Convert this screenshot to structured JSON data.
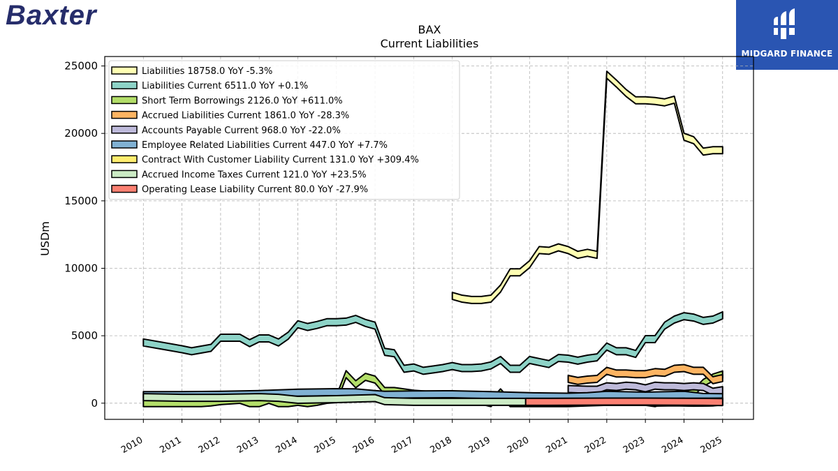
{
  "brand": {
    "logo_text": "Baxter",
    "partner_name": "MIDGARD FINANCE"
  },
  "chart_data": {
    "type": "area",
    "title": "BAX",
    "subtitle": "Current  Liabilities",
    "ylabel": "USDm",
    "xlabel": "",
    "ylim": [
      -1200,
      25700
    ],
    "xlim": [
      2009.0,
      2025.8
    ],
    "yticks": [
      0,
      5000,
      10000,
      15000,
      20000,
      25000
    ],
    "xticks": [
      2010,
      2011,
      2012,
      2013,
      2014,
      2015,
      2016,
      2017,
      2018,
      2019,
      2020,
      2021,
      2022,
      2023,
      2024,
      2025
    ],
    "grid": true,
    "legend_position": "top-left",
    "series": [
      {
        "name": "Liabilities  18758.0 YoY -5.3%",
        "color": "#ffffb3",
        "points": [
          [
            2018.0,
            7950
          ],
          [
            2018.25,
            7750
          ],
          [
            2018.5,
            7650
          ],
          [
            2018.75,
            7650
          ],
          [
            2019.0,
            7750
          ],
          [
            2019.25,
            8500
          ],
          [
            2019.5,
            9700
          ],
          [
            2019.75,
            9700
          ],
          [
            2020.0,
            10300
          ],
          [
            2020.25,
            11350
          ],
          [
            2020.5,
            11300
          ],
          [
            2020.75,
            11550
          ],
          [
            2021.0,
            11350
          ],
          [
            2021.25,
            11000
          ],
          [
            2021.5,
            11150
          ],
          [
            2021.75,
            11000
          ],
          [
            2022.0,
            24350
          ],
          [
            2022.25,
            23700
          ],
          [
            2022.5,
            23000
          ],
          [
            2022.75,
            22450
          ],
          [
            2023.0,
            22450
          ],
          [
            2023.25,
            22400
          ],
          [
            2023.5,
            22300
          ],
          [
            2023.75,
            22500
          ],
          [
            2024.0,
            19750
          ],
          [
            2024.25,
            19500
          ],
          [
            2024.5,
            18650
          ],
          [
            2024.75,
            18750
          ],
          [
            2025.0,
            18758
          ]
        ]
      },
      {
        "name": "Liabilities Current  6511.0 YoY +0.1%",
        "color": "#8dd3c7",
        "points": [
          [
            2010.0,
            4500
          ],
          [
            2010.5,
            4250
          ],
          [
            2011.0,
            4000
          ],
          [
            2011.25,
            3850
          ],
          [
            2011.75,
            4100
          ],
          [
            2012.0,
            4850
          ],
          [
            2012.5,
            4850
          ],
          [
            2012.75,
            4450
          ],
          [
            2013.0,
            4800
          ],
          [
            2013.25,
            4800
          ],
          [
            2013.5,
            4500
          ],
          [
            2013.75,
            5000
          ],
          [
            2014.0,
            5850
          ],
          [
            2014.25,
            5650
          ],
          [
            2014.5,
            5800
          ],
          [
            2014.75,
            6000
          ],
          [
            2015.0,
            6000
          ],
          [
            2015.25,
            6050
          ],
          [
            2015.5,
            6250
          ],
          [
            2015.75,
            5950
          ],
          [
            2016.0,
            5750
          ],
          [
            2016.25,
            3800
          ],
          [
            2016.5,
            3700
          ],
          [
            2016.75,
            2550
          ],
          [
            2017.0,
            2650
          ],
          [
            2017.25,
            2400
          ],
          [
            2017.5,
            2500
          ],
          [
            2017.75,
            2600
          ],
          [
            2018.0,
            2750
          ],
          [
            2018.25,
            2600
          ],
          [
            2018.5,
            2600
          ],
          [
            2018.75,
            2650
          ],
          [
            2019.0,
            2800
          ],
          [
            2019.25,
            3200
          ],
          [
            2019.5,
            2550
          ],
          [
            2019.75,
            2550
          ],
          [
            2020.0,
            3200
          ],
          [
            2020.25,
            3050
          ],
          [
            2020.5,
            2900
          ],
          [
            2020.75,
            3350
          ],
          [
            2021.0,
            3300
          ],
          [
            2021.25,
            3150
          ],
          [
            2021.5,
            3300
          ],
          [
            2021.75,
            3400
          ],
          [
            2022.0,
            4200
          ],
          [
            2022.25,
            3850
          ],
          [
            2022.5,
            3850
          ],
          [
            2022.75,
            3650
          ],
          [
            2023.0,
            4750
          ],
          [
            2023.25,
            4750
          ],
          [
            2023.5,
            5750
          ],
          [
            2023.75,
            6200
          ],
          [
            2024.0,
            6450
          ],
          [
            2024.25,
            6350
          ],
          [
            2024.5,
            6100
          ],
          [
            2024.75,
            6200
          ],
          [
            2025.0,
            6511
          ]
        ]
      },
      {
        "name": "Short Term Borrowings  2126.0 YoY +611.0%",
        "color": "#b3de69",
        "points": [
          [
            2010.0,
            0
          ],
          [
            2011.0,
            0
          ],
          [
            2011.5,
            0
          ],
          [
            2011.75,
            50
          ],
          [
            2012.0,
            150
          ],
          [
            2012.5,
            250
          ],
          [
            2012.75,
            0
          ],
          [
            2013.0,
            0
          ],
          [
            2013.25,
            250
          ],
          [
            2013.5,
            0
          ],
          [
            2013.75,
            0
          ],
          [
            2014.0,
            100
          ],
          [
            2014.25,
            0
          ],
          [
            2014.5,
            100
          ],
          [
            2014.75,
            250
          ],
          [
            2015.0,
            300
          ],
          [
            2015.25,
            2150
          ],
          [
            2015.5,
            1400
          ],
          [
            2015.75,
            1950
          ],
          [
            2016.0,
            1750
          ],
          [
            2016.25,
            900
          ],
          [
            2016.5,
            900
          ],
          [
            2017.0,
            700
          ],
          [
            2017.5,
            600
          ],
          [
            2018.0,
            600
          ],
          [
            2018.5,
            350
          ],
          [
            2019.0,
            0
          ],
          [
            2019.25,
            800
          ],
          [
            2019.5,
            0
          ],
          [
            2019.75,
            0
          ],
          [
            2020.0,
            0
          ],
          [
            2020.5,
            0
          ],
          [
            2021.0,
            0
          ],
          [
            2021.5,
            50
          ],
          [
            2022.0,
            100
          ],
          [
            2022.5,
            100
          ],
          [
            2023.0,
            100
          ],
          [
            2023.25,
            0
          ],
          [
            2023.5,
            200
          ],
          [
            2023.75,
            400
          ],
          [
            2024.0,
            600
          ],
          [
            2024.25,
            800
          ],
          [
            2024.5,
            1500
          ],
          [
            2024.75,
            1900
          ],
          [
            2025.0,
            2126
          ]
        ]
      },
      {
        "name": "Accrued Liabilities Current  1861.0 YoY -28.3%",
        "color": "#fdb462",
        "points": [
          [
            2021.0,
            1800
          ],
          [
            2021.25,
            1650
          ],
          [
            2021.5,
            1750
          ],
          [
            2021.75,
            1800
          ],
          [
            2022.0,
            2400
          ],
          [
            2022.25,
            2200
          ],
          [
            2022.5,
            2200
          ],
          [
            2022.75,
            2150
          ],
          [
            2023.0,
            2150
          ],
          [
            2023.25,
            2300
          ],
          [
            2023.5,
            2250
          ],
          [
            2023.75,
            2550
          ],
          [
            2024.0,
            2600
          ],
          [
            2024.25,
            2400
          ],
          [
            2024.5,
            2400
          ],
          [
            2024.75,
            1700
          ],
          [
            2025.0,
            1861
          ]
        ]
      },
      {
        "name": "Accounts Payable Current  968.0 YoY -22.0%",
        "color": "#bebada",
        "points": [
          [
            2021.0,
            1050
          ],
          [
            2021.5,
            1000
          ],
          [
            2021.75,
            1000
          ],
          [
            2022.0,
            1250
          ],
          [
            2022.25,
            1200
          ],
          [
            2022.5,
            1300
          ],
          [
            2022.75,
            1250
          ],
          [
            2023.0,
            1100
          ],
          [
            2023.25,
            1300
          ],
          [
            2023.5,
            1250
          ],
          [
            2023.75,
            1250
          ],
          [
            2024.0,
            1200
          ],
          [
            2024.25,
            1250
          ],
          [
            2024.5,
            1200
          ],
          [
            2024.75,
            850
          ],
          [
            2025.0,
            968
          ]
        ]
      },
      {
        "name": "Employee Related Liabilities Current  447.0 YoY +7.7%",
        "color": "#80b1d3",
        "points": [
          [
            2010.0,
            600
          ],
          [
            2011.0,
            600
          ],
          [
            2012.0,
            620
          ],
          [
            2013.0,
            680
          ],
          [
            2014.0,
            780
          ],
          [
            2015.0,
            820
          ],
          [
            2015.5,
            800
          ],
          [
            2016.0,
            680
          ],
          [
            2016.25,
            620
          ],
          [
            2017.0,
            650
          ],
          [
            2018.0,
            660
          ],
          [
            2019.0,
            600
          ],
          [
            2020.0,
            520
          ],
          [
            2021.0,
            480
          ],
          [
            2021.5,
            520
          ],
          [
            2022.0,
            620
          ],
          [
            2023.0,
            560
          ],
          [
            2024.0,
            620
          ],
          [
            2024.5,
            460
          ],
          [
            2025.0,
            447
          ]
        ]
      },
      {
        "name": "Contract With Customer Liability Current  131.0 YoY +309.4%",
        "color": "#ffed6f",
        "points": [
          [
            2023.25,
            40
          ],
          [
            2023.75,
            60
          ],
          [
            2024.25,
            35
          ],
          [
            2024.75,
            50
          ],
          [
            2025.0,
            131
          ]
        ]
      },
      {
        "name": "Accrued Income Taxes Current  121.0 YoY +23.5%",
        "color": "#ccebc5",
        "points": [
          [
            2010.0,
            450
          ],
          [
            2011.0,
            400
          ],
          [
            2012.0,
            400
          ],
          [
            2013.0,
            450
          ],
          [
            2013.5,
            400
          ],
          [
            2014.0,
            250
          ],
          [
            2015.0,
            300
          ],
          [
            2016.0,
            380
          ],
          [
            2016.25,
            150
          ],
          [
            2017.0,
            100
          ],
          [
            2018.0,
            100
          ],
          [
            2019.0,
            100
          ],
          [
            2020.0,
            100
          ],
          [
            2021.0,
            100
          ],
          [
            2022.0,
            100
          ],
          [
            2023.0,
            100
          ],
          [
            2024.0,
            100
          ],
          [
            2025.0,
            121
          ]
        ]
      },
      {
        "name": "Operating Lease Liability Current  80.0 YoY -27.9%",
        "color": "#fb8072",
        "points": [
          [
            2019.9,
            100
          ],
          [
            2020.5,
            100
          ],
          [
            2021.0,
            110
          ],
          [
            2021.5,
            115
          ],
          [
            2022.0,
            120
          ],
          [
            2022.5,
            120
          ],
          [
            2023.0,
            120
          ],
          [
            2023.5,
            115
          ],
          [
            2024.0,
            110
          ],
          [
            2024.5,
            100
          ],
          [
            2025.0,
            80
          ]
        ]
      }
    ]
  }
}
